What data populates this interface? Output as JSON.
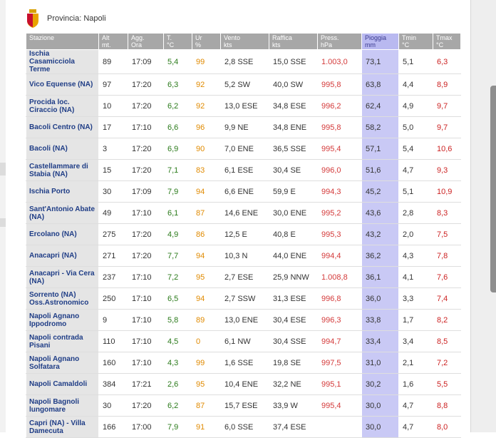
{
  "header": {
    "province": "Provincia: Napoli",
    "crest_icon": "napoli-crest-icon"
  },
  "colors": {
    "header_bg": "#a7a7a7",
    "station_col": "#e5e5e5",
    "rain_col": "#c9c9f5",
    "temp": "#2a7a1a",
    "humidity": "#e08a00",
    "pressure": "#d43a3a",
    "tmax": "#cc2222"
  },
  "columns": [
    {
      "key": "stazione",
      "label": "Stazione"
    },
    {
      "key": "alt",
      "label": "Alt\nmt."
    },
    {
      "key": "agg",
      "label": "Agg.\nOra"
    },
    {
      "key": "t",
      "label": "T.\n°C"
    },
    {
      "key": "ur",
      "label": "Ur\n%"
    },
    {
      "key": "vento",
      "label": "Vento\nkts"
    },
    {
      "key": "raffica",
      "label": "Raffica\nkts"
    },
    {
      "key": "press",
      "label": "Press.\nhPa"
    },
    {
      "key": "pioggia",
      "label": "Pioggia\nmm"
    },
    {
      "key": "tmin",
      "label": "Tmin\n°C"
    },
    {
      "key": "tmax",
      "label": "Tmax\n°C"
    }
  ],
  "rows": [
    {
      "stazione": "Ischia Casamicciola Terme",
      "alt": "89",
      "agg": "17:09",
      "t": "5,4",
      "ur": "99",
      "vento": "2,8 SSE",
      "raffica": "15,0 SSE",
      "press": "1.003,0",
      "pioggia": "73,1",
      "tmin": "5,1",
      "tmax": "6,3"
    },
    {
      "stazione": "Vico Equense (NA)",
      "alt": "97",
      "agg": "17:20",
      "t": "6,3",
      "ur": "92",
      "vento": "5,2 SW",
      "raffica": "40,0 SW",
      "press": "995,8",
      "pioggia": "63,8",
      "tmin": "4,4",
      "tmax": "8,9"
    },
    {
      "stazione": "Procida loc. Ciraccio (NA)",
      "alt": "10",
      "agg": "17:20",
      "t": "6,2",
      "ur": "92",
      "vento": "13,0 ESE",
      "raffica": "34,8 ESE",
      "press": "996,2",
      "pioggia": "62,4",
      "tmin": "4,9",
      "tmax": "9,7"
    },
    {
      "stazione": "Bacoli Centro (NA)",
      "alt": "17",
      "agg": "17:10",
      "t": "6,6",
      "ur": "96",
      "vento": "9,9 NE",
      "raffica": "34,8 ENE",
      "press": "995,8",
      "pioggia": "58,2",
      "tmin": "5,0",
      "tmax": "9,7"
    },
    {
      "stazione": "Bacoli (NA)",
      "alt": "3",
      "agg": "17:20",
      "t": "6,9",
      "ur": "90",
      "vento": "7,0 ENE",
      "raffica": "36,5 SSE",
      "press": "995,4",
      "pioggia": "57,1",
      "tmin": "5,4",
      "tmax": "10,6"
    },
    {
      "stazione": "Castellammare di Stabia (NA)",
      "alt": "15",
      "agg": "17:20",
      "t": "7,1",
      "ur": "83",
      "vento": "6,1 ESE",
      "raffica": "30,4 SE",
      "press": "996,0",
      "pioggia": "51,6",
      "tmin": "4,7",
      "tmax": "9,3"
    },
    {
      "stazione": "Ischia Porto",
      "alt": "30",
      "agg": "17:09",
      "t": "7,9",
      "ur": "94",
      "vento": "6,6 ENE",
      "raffica": "59,9 E",
      "press": "994,3",
      "pioggia": "45,2",
      "tmin": "5,1",
      "tmax": "10,9"
    },
    {
      "stazione": "Sant'Antonio Abate (NA)",
      "alt": "49",
      "agg": "17:10",
      "t": "6,1",
      "ur": "87",
      "vento": "14,6 ENE",
      "raffica": "30,0 ENE",
      "press": "995,2",
      "pioggia": "43,6",
      "tmin": "2,8",
      "tmax": "8,3"
    },
    {
      "stazione": "Ercolano (NA)",
      "alt": "275",
      "agg": "17:20",
      "t": "4,9",
      "ur": "86",
      "vento": "12,5 E",
      "raffica": "40,8 E",
      "press": "995,3",
      "pioggia": "43,2",
      "tmin": "2,0",
      "tmax": "7,5"
    },
    {
      "stazione": "Anacapri (NA)",
      "alt": "271",
      "agg": "17:20",
      "t": "7,7",
      "ur": "94",
      "vento": "10,3 N",
      "raffica": "44,0 ENE",
      "press": "994,4",
      "pioggia": "36,2",
      "tmin": "4,3",
      "tmax": "7,8"
    },
    {
      "stazione": "Anacapri - Via Cera (NA)",
      "alt": "237",
      "agg": "17:10",
      "t": "7,2",
      "ur": "95",
      "vento": "2,7 ESE",
      "raffica": "25,9 NNW",
      "press": "1.008,8",
      "pioggia": "36,1",
      "tmin": "4,1",
      "tmax": "7,6"
    },
    {
      "stazione": "Sorrento (NA) Oss.Astronomico",
      "alt": "250",
      "agg": "17:10",
      "t": "6,5",
      "ur": "94",
      "vento": "2,7 SSW",
      "raffica": "31,3 ESE",
      "press": "996,8",
      "pioggia": "36,0",
      "tmin": "3,3",
      "tmax": "7,4"
    },
    {
      "stazione": "Napoli Agnano Ippodromo",
      "alt": "9",
      "agg": "17:10",
      "t": "5,8",
      "ur": "89",
      "vento": "13,0 ENE",
      "raffica": "30,4 ESE",
      "press": "996,3",
      "pioggia": "33,8",
      "tmin": "1,7",
      "tmax": "8,2"
    },
    {
      "stazione": "Napoli contrada Pisani",
      "alt": "110",
      "agg": "17:10",
      "t": "4,5",
      "ur": "0",
      "vento": "6,1 NW",
      "raffica": "30,4 SSE",
      "press": "994,7",
      "pioggia": "33,4",
      "tmin": "3,4",
      "tmax": "8,5"
    },
    {
      "stazione": "Napoli Agnano Solfatara",
      "alt": "160",
      "agg": "17:10",
      "t": "4,3",
      "ur": "99",
      "vento": "1,6 SSE",
      "raffica": "19,8 SE",
      "press": "997,5",
      "pioggia": "31,0",
      "tmin": "2,1",
      "tmax": "7,2"
    },
    {
      "stazione": "Napoli Camaldoli",
      "alt": "384",
      "agg": "17:21",
      "t": "2,6",
      "ur": "95",
      "vento": "10,4 ENE",
      "raffica": "32,2 NE",
      "press": "995,1",
      "pioggia": "30,2",
      "tmin": "1,6",
      "tmax": "5,5"
    },
    {
      "stazione": "Napoli Bagnoli lungomare",
      "alt": "30",
      "agg": "17:20",
      "t": "6,2",
      "ur": "87",
      "vento": "15,7 ESE",
      "raffica": "33,9 W",
      "press": "995,4",
      "pioggia": "30,0",
      "tmin": "4,7",
      "tmax": "8,8"
    },
    {
      "stazione": "Capri (NA) - Villa Damecuta",
      "alt": "166",
      "agg": "17:00",
      "t": "7,9",
      "ur": "91",
      "vento": "6,0 SSE",
      "raffica": "37,4 ESE",
      "press": "",
      "pioggia": "30,0",
      "tmin": "4,7",
      "tmax": "8,0"
    }
  ]
}
